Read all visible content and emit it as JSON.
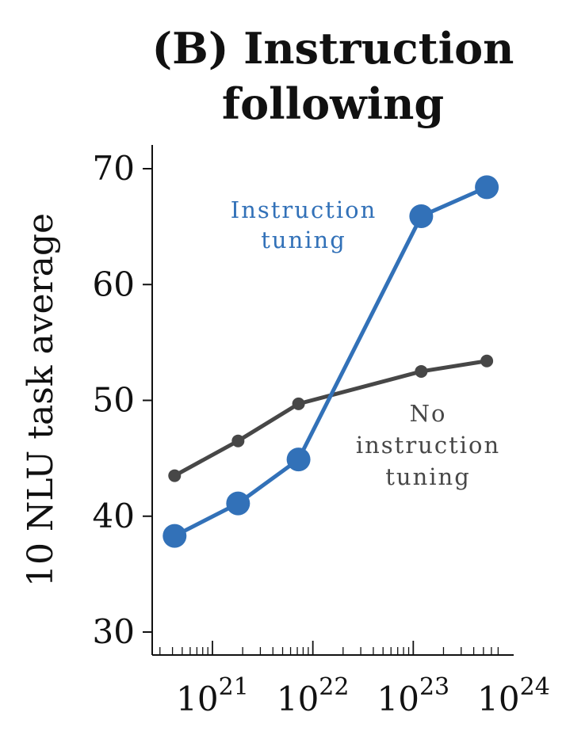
{
  "chart_data": {
    "type": "line",
    "title": [
      "(B) Instruction",
      "following"
    ],
    "ylabel": "10 NLU task average",
    "xscale": "log",
    "xlim": [
      3e+20,
      8e+23
    ],
    "ylim": [
      28,
      72
    ],
    "yticks": [
      30,
      40,
      50,
      60,
      70
    ],
    "xticks": [
      {
        "value": 1e+21,
        "base": "10",
        "exp": "21"
      },
      {
        "value": 1e+22,
        "base": "10",
        "exp": "22"
      },
      {
        "value": 1e+23,
        "base": "10",
        "exp": "23"
      },
      {
        "value": 1e+24,
        "base": "10",
        "exp": "24"
      }
    ],
    "series": [
      {
        "name": "No instruction tuning",
        "label_lines": [
          "No",
          "instruction",
          "tuning"
        ],
        "color": "#474747",
        "marker": "small",
        "x": [
          4.2e+20,
          1.8e+21,
          7.2e+21,
          1.2e+23,
          5.4e+23
        ],
        "y": [
          43.5,
          46.5,
          49.7,
          52.5,
          53.4
        ]
      },
      {
        "name": "Instruction tuning",
        "label_lines": [
          "Instruction",
          "tuning"
        ],
        "color": "#3271b8",
        "marker": "large",
        "x": [
          4.2e+20,
          1.8e+21,
          7.2e+21,
          1.2e+23,
          5.4e+23
        ],
        "y": [
          38.3,
          41.1,
          44.9,
          65.9,
          68.4
        ]
      }
    ],
    "grid": false,
    "legend": "inline annotations"
  }
}
